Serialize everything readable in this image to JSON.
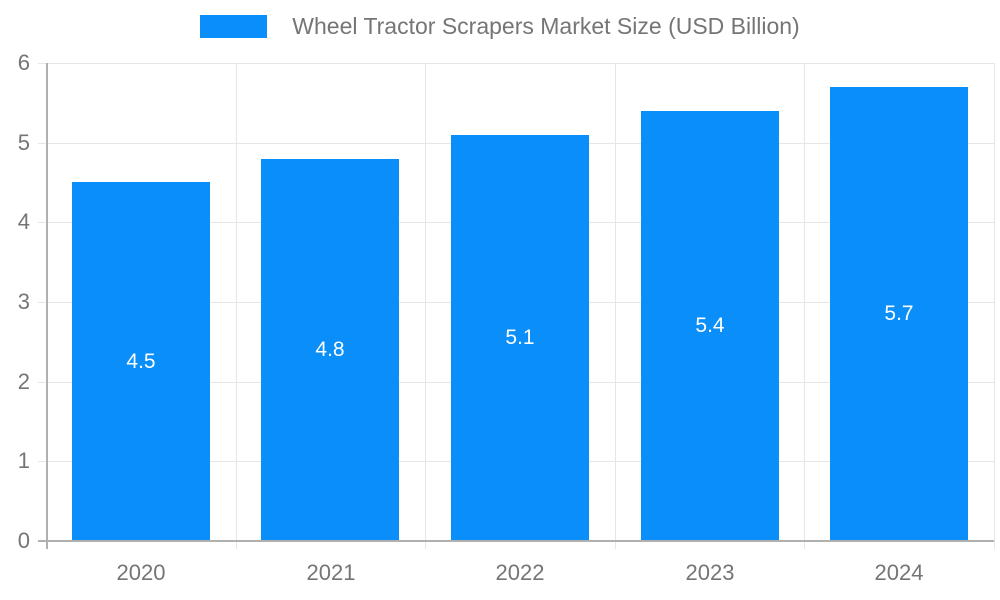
{
  "chart_data": {
    "type": "bar",
    "title": "Wheel Tractor Scrapers Market Size (USD Billion)",
    "categories": [
      "2020",
      "2021",
      "2022",
      "2023",
      "2024"
    ],
    "values": [
      4.5,
      4.8,
      5.1,
      5.4,
      5.7
    ],
    "value_labels": [
      "4.5",
      "4.8",
      "5.1",
      "5.4",
      "5.7"
    ],
    "xlabel": "",
    "ylabel": "",
    "ylim": [
      0,
      6
    ],
    "yticks": [
      0,
      1,
      2,
      3,
      4,
      5,
      6
    ],
    "grid": true,
    "legend_position": "top-center"
  },
  "colors": {
    "bar": "#0A8EF9",
    "grid": "#e6e6e6",
    "axis": "#b0b0b0",
    "text": "#757575",
    "value_label": "#ffffff",
    "background": "#ffffff"
  }
}
